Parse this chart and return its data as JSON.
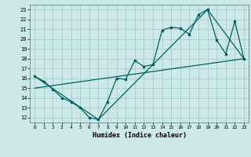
{
  "xlabel": "Humidex (Indice chaleur)",
  "background_color": "#cce8e8",
  "grid_color": "#aacccc",
  "line_color": "#006060",
  "xlim": [
    -0.5,
    23.5
  ],
  "ylim": [
    11.5,
    23.5
  ],
  "xticks": [
    0,
    1,
    2,
    3,
    4,
    5,
    6,
    7,
    8,
    9,
    10,
    11,
    12,
    13,
    14,
    15,
    16,
    17,
    18,
    19,
    20,
    21,
    22,
    23
  ],
  "yticks": [
    12,
    13,
    14,
    15,
    16,
    17,
    18,
    19,
    20,
    21,
    22,
    23
  ],
  "line1_x": [
    0,
    1,
    2,
    3,
    4,
    5,
    6,
    7,
    8,
    9,
    10,
    11,
    12,
    13,
    14,
    15,
    16,
    17,
    18,
    19,
    20,
    21,
    22,
    23
  ],
  "line1_y": [
    16.2,
    15.7,
    14.9,
    14.0,
    13.6,
    13.0,
    12.0,
    11.8,
    13.6,
    16.0,
    15.9,
    17.8,
    17.2,
    17.4,
    20.9,
    21.2,
    21.1,
    20.5,
    22.5,
    23.0,
    19.9,
    18.5,
    21.8,
    18.0
  ],
  "line2_x": [
    0,
    7,
    19,
    23
  ],
  "line2_y": [
    16.2,
    11.8,
    23.0,
    18.0
  ],
  "line3_x": [
    0,
    23
  ],
  "line3_y": [
    15.0,
    18.0
  ]
}
